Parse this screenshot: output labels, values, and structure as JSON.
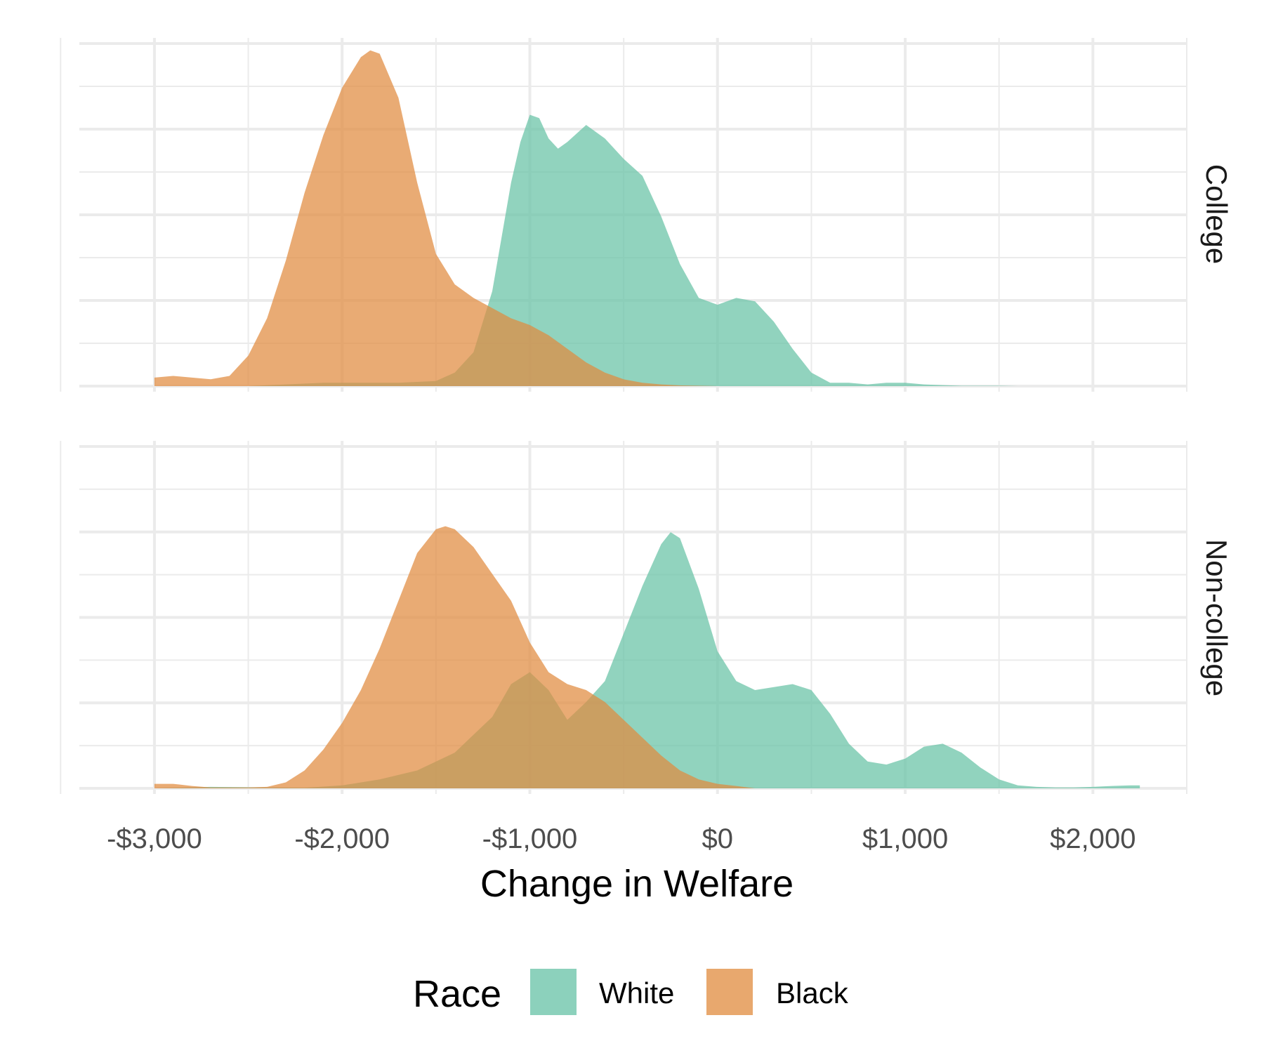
{
  "chart_data": {
    "type": "area",
    "subtype": "density (faceted)",
    "xlabel": "Change in Welfare",
    "x_ticks": [
      -3000,
      -2000,
      -1000,
      0,
      1000,
      2000
    ],
    "x_tick_labels": [
      "-$3,000",
      "-$2,000",
      "-$1,000",
      "$0",
      "$1,000",
      "$2,000"
    ],
    "xlim": [
      -3400,
      2500
    ],
    "grid": true,
    "legend": {
      "title": "Race",
      "position": "bottom",
      "entries": [
        {
          "name": "White",
          "color": "#66C2A5"
        },
        {
          "name": "Black",
          "color": "#E08B3E"
        }
      ]
    },
    "colors": {
      "White": "#66C2A5",
      "Black": "#E08B3E",
      "overlap": "#B0965A"
    },
    "facets": [
      {
        "label": "College",
        "ymax_relative": 1.0,
        "series": [
          {
            "name": "White",
            "x": [
              -3000,
              -2500,
              -2300,
              -2100,
              -1900,
              -1700,
              -1500,
              -1400,
              -1300,
              -1200,
              -1100,
              -1050,
              -1000,
              -950,
              -900,
              -850,
              -800,
              -700,
              -600,
              -500,
              -400,
              -300,
              -200,
              -100,
              0,
              100,
              200,
              300,
              400,
              500,
              600,
              700,
              800,
              900,
              1000,
              1100,
              1200,
              1300,
              1400,
              1500,
              1600,
              1700,
              1800,
              1900,
              2000
            ],
            "y": [
              0,
              0,
              0.005,
              0.01,
              0.01,
              0.01,
              0.015,
              0.04,
              0.1,
              0.28,
              0.6,
              0.72,
              0.8,
              0.79,
              0.73,
              0.7,
              0.72,
              0.77,
              0.73,
              0.67,
              0.62,
              0.5,
              0.36,
              0.26,
              0.24,
              0.26,
              0.25,
              0.19,
              0.11,
              0.04,
              0.01,
              0.01,
              0.005,
              0.01,
              0.01,
              0.005,
              0.003,
              0.001,
              0.001,
              0.001,
              0,
              0,
              0,
              0,
              0
            ]
          },
          {
            "name": "Black",
            "x": [
              -3000,
              -2900,
              -2800,
              -2700,
              -2600,
              -2500,
              -2400,
              -2300,
              -2200,
              -2100,
              -2000,
              -1900,
              -1850,
              -1800,
              -1700,
              -1600,
              -1500,
              -1400,
              -1300,
              -1200,
              -1100,
              -1000,
              -900,
              -800,
              -700,
              -600,
              -500,
              -400,
              -300,
              -200,
              -100,
              0,
              100
            ],
            "y": [
              0.025,
              0.03,
              0.025,
              0.02,
              0.03,
              0.09,
              0.2,
              0.37,
              0.57,
              0.74,
              0.88,
              0.97,
              0.99,
              0.98,
              0.85,
              0.6,
              0.39,
              0.3,
              0.26,
              0.23,
              0.2,
              0.18,
              0.15,
              0.11,
              0.07,
              0.04,
              0.02,
              0.01,
              0.005,
              0.002,
              0.001,
              0,
              0
            ]
          }
        ]
      },
      {
        "label": "Non-college",
        "ymax_relative": 0.88,
        "series": [
          {
            "name": "White",
            "x": [
              -3000,
              -2700,
              -2400,
              -2200,
              -2000,
              -1800,
              -1600,
              -1400,
              -1300,
              -1200,
              -1100,
              -1000,
              -900,
              -800,
              -700,
              -600,
              -500,
              -400,
              -300,
              -250,
              -200,
              -100,
              0,
              100,
              200,
              300,
              400,
              500,
              600,
              700,
              800,
              900,
              1000,
              1100,
              1200,
              1300,
              1400,
              1500,
              1600,
              1700,
              1800,
              1900,
              2000,
              2100,
              2200,
              2250
            ],
            "y": [
              0,
              0.005,
              0.003,
              0.002,
              0.01,
              0.03,
              0.06,
              0.12,
              0.18,
              0.24,
              0.35,
              0.39,
              0.33,
              0.23,
              0.29,
              0.36,
              0.52,
              0.68,
              0.82,
              0.86,
              0.84,
              0.67,
              0.46,
              0.36,
              0.33,
              0.34,
              0.35,
              0.33,
              0.25,
              0.15,
              0.09,
              0.08,
              0.1,
              0.14,
              0.15,
              0.12,
              0.07,
              0.03,
              0.01,
              0.005,
              0.003,
              0.003,
              0.005,
              0.008,
              0.01,
              0.01
            ]
          },
          {
            "name": "Black",
            "x": [
              -3000,
              -2900,
              -2800,
              -2700,
              -2600,
              -2500,
              -2400,
              -2300,
              -2200,
              -2100,
              -2000,
              -1900,
              -1800,
              -1700,
              -1600,
              -1500,
              -1450,
              -1400,
              -1300,
              -1200,
              -1100,
              -1000,
              -900,
              -800,
              -700,
              -600,
              -500,
              -400,
              -300,
              -200,
              -100,
              0,
              100,
              200
            ],
            "y": [
              0.015,
              0.015,
              0.008,
              0.003,
              0.003,
              0.003,
              0.005,
              0.02,
              0.06,
              0.13,
              0.22,
              0.33,
              0.47,
              0.63,
              0.79,
              0.87,
              0.88,
              0.87,
              0.81,
              0.72,
              0.63,
              0.49,
              0.39,
              0.35,
              0.33,
              0.29,
              0.23,
              0.17,
              0.11,
              0.06,
              0.03,
              0.015,
              0.008,
              0
            ]
          }
        ]
      }
    ]
  }
}
